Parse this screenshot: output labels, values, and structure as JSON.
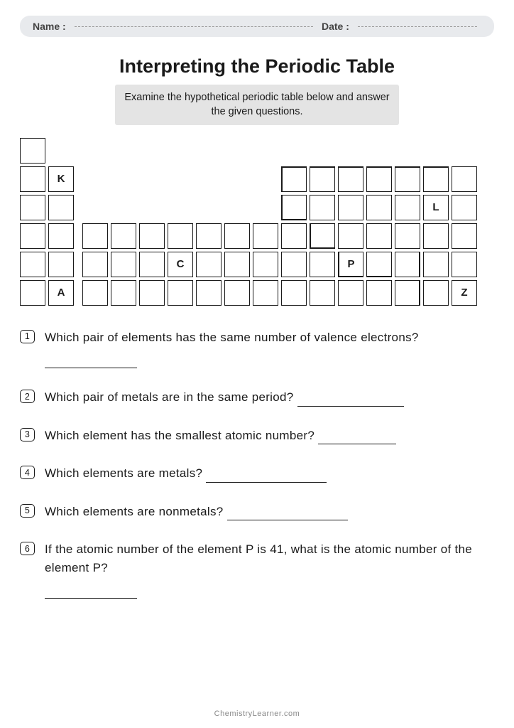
{
  "header": {
    "name_label": "Name :",
    "date_label": "Date :"
  },
  "title": "Interpreting the Periodic Table",
  "instruction": "Examine the hypothetical periodic table below and answer the given questions.",
  "grid": {
    "cell_size": 36,
    "gap": 4,
    "cells": [
      {
        "r": 0,
        "c": 0,
        "l": ""
      },
      {
        "r": 1,
        "c": 0,
        "l": ""
      },
      {
        "r": 1,
        "c": 1,
        "l": "K"
      },
      {
        "r": 1,
        "c": 9,
        "l": "",
        "tt": true,
        "tl": true
      },
      {
        "r": 1,
        "c": 10,
        "l": "",
        "tt": true
      },
      {
        "r": 1,
        "c": 11,
        "l": "",
        "tt": true
      },
      {
        "r": 1,
        "c": 12,
        "l": "",
        "tt": true
      },
      {
        "r": 1,
        "c": 13,
        "l": "",
        "tt": true
      },
      {
        "r": 1,
        "c": 14,
        "l": "",
        "tt": true
      },
      {
        "r": 1,
        "c": 15,
        "l": ""
      },
      {
        "r": 2,
        "c": 0,
        "l": ""
      },
      {
        "r": 2,
        "c": 1,
        "l": ""
      },
      {
        "r": 2,
        "c": 9,
        "l": "",
        "tl": true,
        "tb": true
      },
      {
        "r": 2,
        "c": 10,
        "l": ""
      },
      {
        "r": 2,
        "c": 11,
        "l": ""
      },
      {
        "r": 2,
        "c": 12,
        "l": ""
      },
      {
        "r": 2,
        "c": 13,
        "l": ""
      },
      {
        "r": 2,
        "c": 14,
        "l": "L"
      },
      {
        "r": 2,
        "c": 15,
        "l": ""
      },
      {
        "r": 3,
        "c": 0,
        "l": ""
      },
      {
        "r": 3,
        "c": 1,
        "l": ""
      },
      {
        "r": 3,
        "c": 2,
        "l": ""
      },
      {
        "r": 3,
        "c": 3,
        "l": ""
      },
      {
        "r": 3,
        "c": 4,
        "l": ""
      },
      {
        "r": 3,
        "c": 5,
        "l": ""
      },
      {
        "r": 3,
        "c": 6,
        "l": ""
      },
      {
        "r": 3,
        "c": 7,
        "l": ""
      },
      {
        "r": 3,
        "c": 8,
        "l": ""
      },
      {
        "r": 3,
        "c": 9,
        "l": ""
      },
      {
        "r": 3,
        "c": 10,
        "l": "",
        "tl": true,
        "tb": true
      },
      {
        "r": 3,
        "c": 11,
        "l": ""
      },
      {
        "r": 3,
        "c": 12,
        "l": ""
      },
      {
        "r": 3,
        "c": 13,
        "l": ""
      },
      {
        "r": 3,
        "c": 14,
        "l": ""
      },
      {
        "r": 3,
        "c": 15,
        "l": ""
      },
      {
        "r": 4,
        "c": 0,
        "l": ""
      },
      {
        "r": 4,
        "c": 1,
        "l": ""
      },
      {
        "r": 4,
        "c": 2,
        "l": ""
      },
      {
        "r": 4,
        "c": 3,
        "l": ""
      },
      {
        "r": 4,
        "c": 4,
        "l": ""
      },
      {
        "r": 4,
        "c": 5,
        "l": "C"
      },
      {
        "r": 4,
        "c": 6,
        "l": ""
      },
      {
        "r": 4,
        "c": 7,
        "l": ""
      },
      {
        "r": 4,
        "c": 8,
        "l": ""
      },
      {
        "r": 4,
        "c": 9,
        "l": ""
      },
      {
        "r": 4,
        "c": 10,
        "l": ""
      },
      {
        "r": 4,
        "c": 11,
        "l": "P",
        "tl": true,
        "tb": true
      },
      {
        "r": 4,
        "c": 12,
        "l": "",
        "tb": true
      },
      {
        "r": 4,
        "c": 13,
        "l": "",
        "tr": true
      },
      {
        "r": 4,
        "c": 14,
        "l": ""
      },
      {
        "r": 4,
        "c": 15,
        "l": ""
      },
      {
        "r": 5,
        "c": 0,
        "l": ""
      },
      {
        "r": 5,
        "c": 1,
        "l": "A"
      },
      {
        "r": 5,
        "c": 2,
        "l": ""
      },
      {
        "r": 5,
        "c": 3,
        "l": ""
      },
      {
        "r": 5,
        "c": 4,
        "l": ""
      },
      {
        "r": 5,
        "c": 5,
        "l": ""
      },
      {
        "r": 5,
        "c": 6,
        "l": ""
      },
      {
        "r": 5,
        "c": 7,
        "l": ""
      },
      {
        "r": 5,
        "c": 8,
        "l": ""
      },
      {
        "r": 5,
        "c": 9,
        "l": ""
      },
      {
        "r": 5,
        "c": 10,
        "l": ""
      },
      {
        "r": 5,
        "c": 11,
        "l": ""
      },
      {
        "r": 5,
        "c": 12,
        "l": ""
      },
      {
        "r": 5,
        "c": 13,
        "l": "",
        "tr": true
      },
      {
        "r": 5,
        "c": 14,
        "l": ""
      },
      {
        "r": 5,
        "c": 15,
        "l": "Z"
      }
    ]
  },
  "questions": [
    {
      "n": "1",
      "text": "Which pair of elements has the same number of valence electrons?",
      "blank_below": true,
      "blank_width": 130
    },
    {
      "n": "2",
      "text": "Which pair of metals are in the same period?",
      "inline_blank": 150
    },
    {
      "n": "3",
      "text": "Which element has the smallest atomic number?",
      "inline_blank": 110
    },
    {
      "n": "4",
      "text": "Which elements are metals?",
      "inline_blank": 170
    },
    {
      "n": "5",
      "text": "Which elements are nonmetals?",
      "inline_blank": 170
    },
    {
      "n": "6",
      "text": "If the atomic number of the element P is 41, what is the atomic number of the element P?",
      "blank_below": true,
      "blank_width": 130
    }
  ],
  "footer": "ChemistryLearner.com"
}
